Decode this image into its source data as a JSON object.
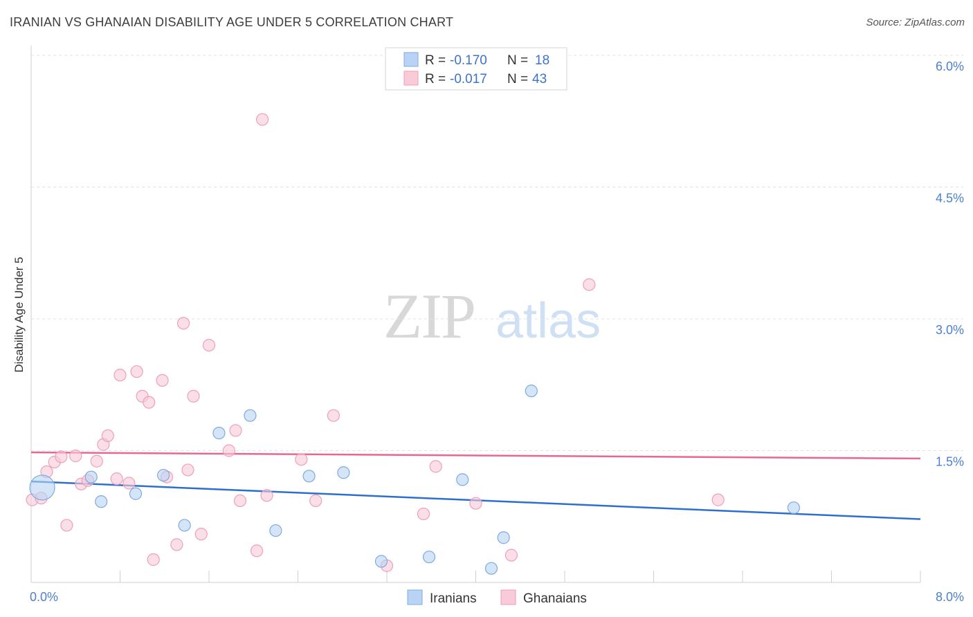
{
  "title": "IRANIAN VS GHANAIAN DISABILITY AGE UNDER 5 CORRELATION CHART",
  "source": "Source: ZipAtlas.com",
  "colors": {
    "iranians_fill": "#b8d3f3",
    "iranians_stroke": "#7fa9e0",
    "iranians_line": "#2d6fcf",
    "ghanaians_fill": "#f9cad8",
    "ghanaians_stroke": "#ef9fb8",
    "ghanaians_line": "#e8678f",
    "tick_text": "#4a7fd4"
  },
  "legend": {
    "rows": [
      {
        "r_label": "R = ",
        "r_value": "-0.170",
        "n_label": "N = ",
        "n_value": "18"
      },
      {
        "r_label": "R = ",
        "r_value": "-0.017",
        "n_label": "N = ",
        "n_value": "43"
      }
    ]
  },
  "bottom_legend": {
    "iranians": "Iranians",
    "ghanaians": "Ghanaians"
  },
  "watermark": {
    "zip": "ZIP",
    "atlas": "atlas"
  },
  "chart_data": {
    "type": "scatter",
    "title": "IRANIAN VS GHANAIAN DISABILITY AGE UNDER 5 CORRELATION CHART",
    "xlabel": "",
    "ylabel": "Disability Age Under 5",
    "xlim": [
      0,
      8
    ],
    "ylim": [
      0,
      6
    ],
    "x_tick_labels": [
      "0.0%",
      "8.0%"
    ],
    "y_ticks": [
      1.5,
      3.0,
      4.5,
      6.0
    ],
    "y_tick_labels": [
      "1.5%",
      "3.0%",
      "4.5%",
      "6.0%"
    ],
    "grid": "horizontal dashed",
    "series": [
      {
        "name": "Iranians",
        "points": [
          [
            0.1,
            1.08
          ],
          [
            0.54,
            1.2
          ],
          [
            0.63,
            0.92
          ],
          [
            0.94,
            1.01
          ],
          [
            1.19,
            1.22
          ],
          [
            1.38,
            0.65
          ],
          [
            1.69,
            1.7
          ],
          [
            1.97,
            1.9
          ],
          [
            2.2,
            0.59
          ],
          [
            2.5,
            1.21
          ],
          [
            2.81,
            1.25
          ],
          [
            3.15,
            0.24
          ],
          [
            3.58,
            0.29
          ],
          [
            3.88,
            1.17
          ],
          [
            4.14,
            0.16
          ],
          [
            4.25,
            0.51
          ],
          [
            4.5,
            2.18
          ],
          [
            6.86,
            0.85
          ]
        ],
        "trend": {
          "x": [
            0,
            8
          ],
          "y": [
            1.15,
            0.72
          ]
        }
      },
      {
        "name": "Ghanaians",
        "points": [
          [
            0.01,
            0.94
          ],
          [
            0.09,
            0.96
          ],
          [
            0.14,
            1.26
          ],
          [
            0.21,
            1.37
          ],
          [
            0.27,
            1.43
          ],
          [
            0.32,
            0.65
          ],
          [
            0.4,
            1.44
          ],
          [
            0.45,
            1.12
          ],
          [
            0.51,
            1.16
          ],
          [
            0.59,
            1.38
          ],
          [
            0.65,
            1.57
          ],
          [
            0.69,
            1.67
          ],
          [
            0.77,
            1.18
          ],
          [
            0.8,
            2.36
          ],
          [
            0.88,
            1.13
          ],
          [
            0.95,
            2.4
          ],
          [
            1.0,
            2.12
          ],
          [
            1.06,
            2.05
          ],
          [
            1.1,
            0.26
          ],
          [
            1.18,
            2.3
          ],
          [
            1.22,
            1.2
          ],
          [
            1.31,
            0.43
          ],
          [
            1.37,
            2.95
          ],
          [
            1.41,
            1.28
          ],
          [
            1.46,
            2.12
          ],
          [
            1.53,
            0.55
          ],
          [
            1.6,
            2.7
          ],
          [
            1.78,
            1.5
          ],
          [
            1.84,
            1.73
          ],
          [
            1.88,
            0.93
          ],
          [
            2.03,
            0.36
          ],
          [
            2.08,
            5.27
          ],
          [
            2.12,
            0.99
          ],
          [
            2.43,
            1.4
          ],
          [
            2.56,
            0.93
          ],
          [
            2.72,
            1.9
          ],
          [
            3.2,
            0.19
          ],
          [
            3.53,
            0.78
          ],
          [
            3.64,
            1.32
          ],
          [
            4.0,
            0.9
          ],
          [
            4.32,
            0.31
          ],
          [
            5.02,
            3.39
          ],
          [
            6.18,
            0.94
          ]
        ],
        "trend": {
          "x": [
            0,
            8
          ],
          "y": [
            1.48,
            1.41
          ]
        }
      }
    ]
  }
}
